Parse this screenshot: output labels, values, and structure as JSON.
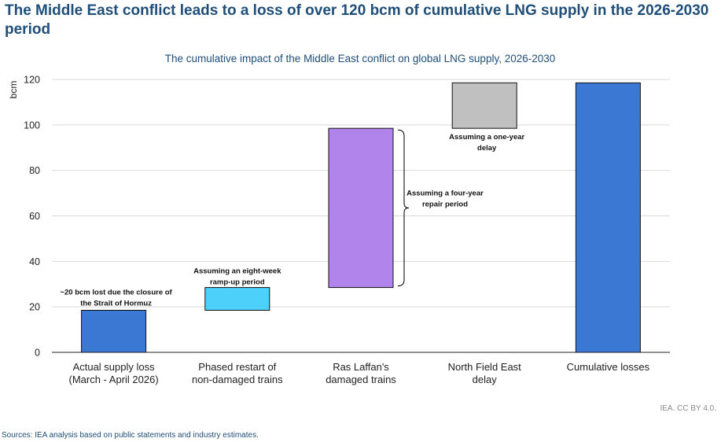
{
  "headline": "The Middle East conflict leads to a loss of over 120 bcm of cumulative LNG supply in the 2026-2030 period",
  "chart_data": {
    "type": "bar",
    "subtype": "waterfall",
    "title": "The cumulative impact of the Middle East conflict on global LNG supply, 2026-2030",
    "xlabel": "",
    "ylabel": "bcm",
    "ylim": [
      0,
      120
    ],
    "yticks": [
      0,
      20,
      40,
      60,
      80,
      100,
      120
    ],
    "grid": true,
    "categories": [
      [
        "Actual supply loss",
        "(March - April 2026)"
      ],
      [
        "Phased restart of",
        "non-damaged trains"
      ],
      [
        "Ras Laffan's",
        "damaged trains"
      ],
      [
        "North Field East",
        "delay"
      ],
      [
        "Cumulative losses"
      ]
    ],
    "bars": [
      {
        "base": 0,
        "top": 18.5,
        "color": "#3a78d4",
        "annotation": [
          "~20 bcm lost due the closure of",
          "the Strait of Hormuz"
        ]
      },
      {
        "base": 18.5,
        "top": 28.5,
        "color": "#4dd1fb",
        "annotation": [
          "Assuming an eight-week",
          "ramp-up period"
        ]
      },
      {
        "base": 28.5,
        "top": 98.5,
        "color": "#b184ec",
        "annotation": [
          "Assuming a four-year",
          "repair period"
        ]
      },
      {
        "base": 98.5,
        "top": 118.5,
        "color": "#c0c0c0",
        "annotation": [
          "Assuming a one-year",
          "delay"
        ]
      },
      {
        "base": 0,
        "top": 118.5,
        "color": "#3a78d4",
        "annotation": []
      }
    ]
  },
  "credit": "IEA. CC BY 4.0.",
  "sources": "Sources: IEA analysis based on public statements and industry estimates."
}
